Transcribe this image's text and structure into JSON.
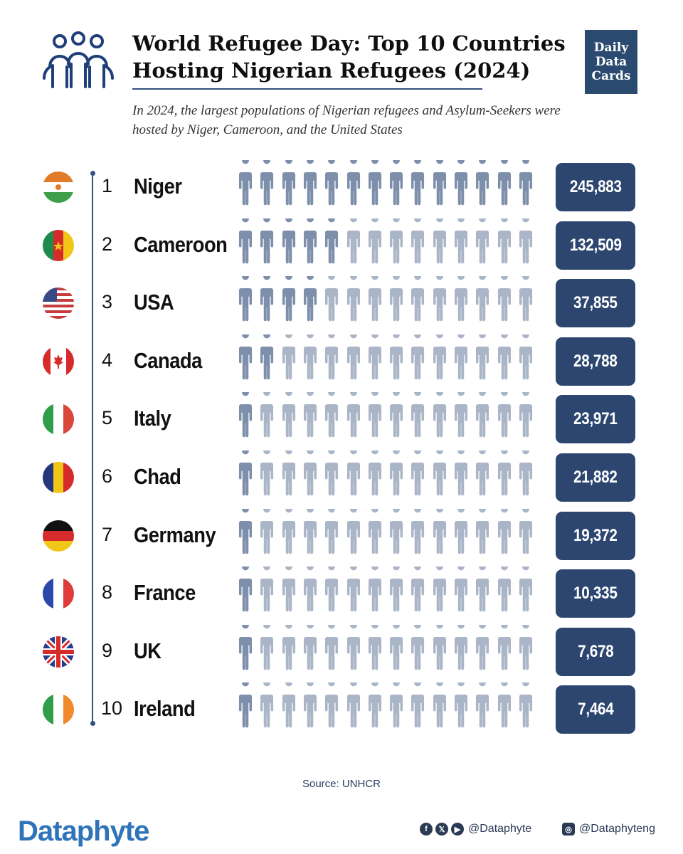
{
  "header": {
    "title": "World Refugee Day: Top 10 Countries Hosting Nigerian Refugees (2024)",
    "subtitle": "In 2024, the largest populations of Nigerian refugees and Asylum-Seekers were hosted by Niger, Cameroon, and the United States",
    "badge_lines": [
      "Daily",
      "Data",
      "Cards"
    ]
  },
  "colors": {
    "accent": "#2d4670",
    "icon_filled": "#7d8fab",
    "icon_empty": "#aab6c7",
    "brand": "#2f74b8"
  },
  "chart_data": {
    "type": "bar",
    "categories": [
      "Niger",
      "Cameroon",
      "USA",
      "Canada",
      "Italy",
      "Chad",
      "Germany",
      "France",
      "UK",
      "Ireland"
    ],
    "ranks": [
      "1",
      "2",
      "3",
      "4",
      "5",
      "6",
      "7",
      "8",
      "9",
      "10"
    ],
    "values": [
      245883,
      132509,
      37855,
      28788,
      23971,
      21882,
      19372,
      10335,
      7678,
      7464
    ],
    "value_labels": [
      "245,883",
      "132,509",
      "37,855",
      "28,788",
      "23,971",
      "21,882",
      "19,372",
      "10,335",
      "7,678",
      "7,464"
    ],
    "filled_icons": [
      14,
      5,
      4,
      2,
      1,
      1,
      1,
      1,
      1,
      1
    ],
    "icons_per_row": 14,
    "flags": [
      "niger-flag",
      "cameroon-flag",
      "usa-flag",
      "canada-flag",
      "italy-flag",
      "chad-flag",
      "germany-flag",
      "france-flag",
      "uk-flag",
      "ireland-flag"
    ]
  },
  "footer": {
    "source": "Source: UNHCR",
    "brand": "Dataphyte",
    "social_left_handle": "@Dataphyte",
    "social_right_handle": "@Dataphyteng",
    "social_icons": [
      "facebook-icon",
      "x-icon",
      "youtube-icon",
      "instagram-icon"
    ]
  }
}
